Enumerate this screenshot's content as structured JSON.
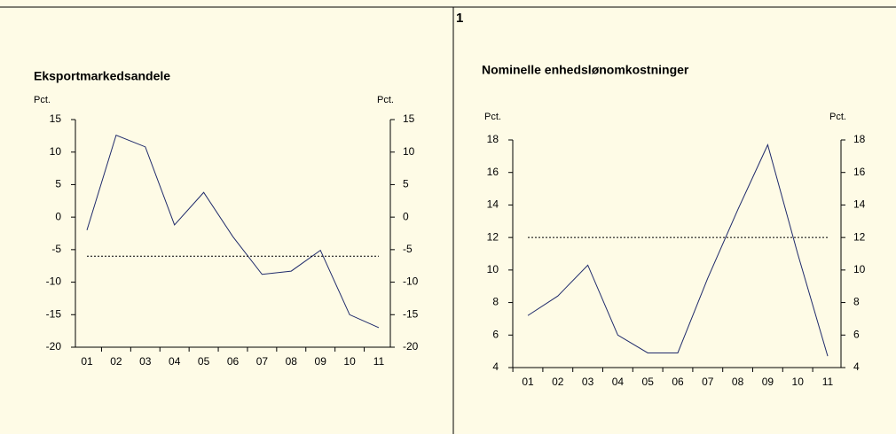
{
  "label": "1",
  "chart_data": [
    {
      "type": "line",
      "title": "Eksportmarkedsandele",
      "ylabel": "Pct.",
      "y2label": "Pct.",
      "categories": [
        "01",
        "02",
        "03",
        "04",
        "05",
        "06",
        "07",
        "08",
        "09",
        "10",
        "11"
      ],
      "series": [
        {
          "color": "#1f2a6b",
          "style": "solid",
          "values": [
            -2,
            12.6,
            10.8,
            -1.2,
            3.8,
            -3,
            -8.8,
            -8.3,
            -5.1,
            -15,
            -17
          ]
        },
        {
          "color": "#000000",
          "style": "dotted",
          "values": [
            -6,
            -6,
            -6,
            -6,
            -6,
            -6,
            -6,
            -6,
            -6,
            -6,
            -6
          ]
        }
      ],
      "ylim": [
        -20,
        15
      ],
      "yticks": [
        -20,
        -15,
        -10,
        -5,
        0,
        5,
        10,
        15
      ],
      "y2lim": [
        -20,
        15
      ],
      "y2ticks": [
        -20,
        -15,
        -10,
        -5,
        0,
        5,
        10,
        15
      ]
    },
    {
      "type": "line",
      "title": "Nominelle enhedslønomkostninger",
      "ylabel": "Pct.",
      "y2label": "Pct.",
      "categories": [
        "01",
        "02",
        "03",
        "04",
        "05",
        "06",
        "07",
        "08",
        "09",
        "10",
        "11"
      ],
      "series": [
        {
          "color": "#1f2a6b",
          "style": "solid",
          "values": [
            7.2,
            8.4,
            10.3,
            6,
            4.9,
            4.9,
            9.5,
            13.7,
            17.7,
            11,
            4.7
          ]
        },
        {
          "color": "#000000",
          "style": "dotted",
          "values": [
            12,
            12,
            12,
            12,
            12,
            12,
            12,
            12,
            12,
            12,
            12
          ]
        }
      ],
      "ylim": [
        4,
        18
      ],
      "yticks": [
        4,
        6,
        8,
        10,
        12,
        14,
        16,
        18
      ],
      "y2lim": [
        4,
        18
      ],
      "y2ticks": [
        4,
        6,
        8,
        10,
        12,
        14,
        16,
        18
      ]
    }
  ]
}
